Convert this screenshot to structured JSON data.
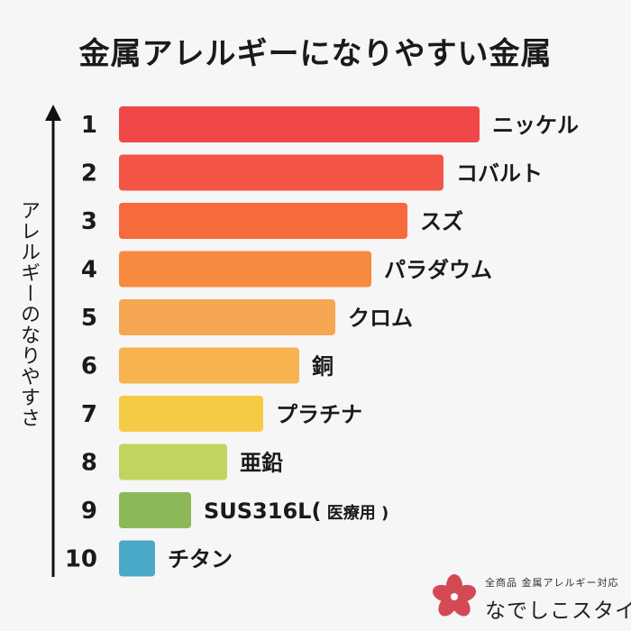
{
  "chart_data": {
    "type": "bar",
    "orientation": "horizontal",
    "title": "金属アレルギーになりやすい金属",
    "ylabel": "アレルギーのなりやすさ",
    "xlabel": "",
    "categories": [
      "ニッケル",
      "コバルト",
      "スズ",
      "パラダウム",
      "クロム",
      "銅",
      "プラチナ",
      "亜鉛",
      "SUS316L(医療用)",
      "チタン"
    ],
    "category_parts": [
      {
        "main": "ニッケル",
        "paren": ""
      },
      {
        "main": "コバルト",
        "paren": ""
      },
      {
        "main": "スズ",
        "paren": ""
      },
      {
        "main": "パラダウム",
        "paren": ""
      },
      {
        "main": "クロム",
        "paren": ""
      },
      {
        "main": "銅",
        "paren": ""
      },
      {
        "main": "プラチナ",
        "paren": ""
      },
      {
        "main": "亜鉛",
        "paren": ""
      },
      {
        "main": "SUS316L(",
        "paren": " 医療用 )"
      },
      {
        "main": "チタン",
        "paren": ""
      }
    ],
    "ranks": [
      "1",
      "2",
      "3",
      "4",
      "5",
      "6",
      "7",
      "8",
      "9",
      "10"
    ],
    "values": [
      10,
      9,
      8,
      7,
      6,
      5,
      4,
      3,
      2,
      1
    ],
    "xlim": [
      0,
      10
    ],
    "colors": [
      "#f04848",
      "#f25545",
      "#f66a3c",
      "#f68a3e",
      "#f5a653",
      "#f6b34f",
      "#f5cb46",
      "#c2d45e",
      "#8db858",
      "#4aa9c6"
    ],
    "grid": false,
    "legend": "none"
  },
  "logo": {
    "note": "全商品 金属アレルギー対応",
    "name": "なでしこスタイル",
    "flower_color": "#d34a55"
  }
}
